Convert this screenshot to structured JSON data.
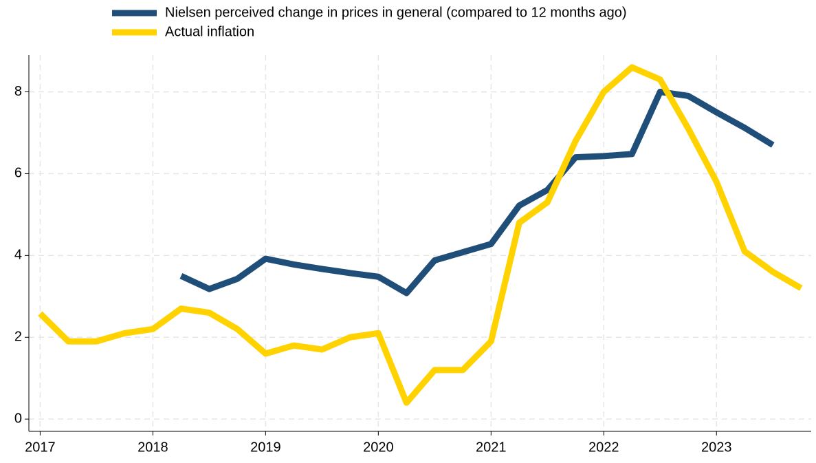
{
  "chart_data": {
    "type": "line",
    "x": [
      2017,
      2017.25,
      2017.5,
      2017.75,
      2018,
      2018.25,
      2018.5,
      2018.75,
      2019,
      2019.25,
      2019.5,
      2019.75,
      2020,
      2020.25,
      2020.5,
      2020.75,
      2021,
      2021.25,
      2021.5,
      2021.75,
      2022,
      2022.25,
      2022.5,
      2022.75,
      2023,
      2023.25,
      2023.5,
      2023.75
    ],
    "series": [
      {
        "name": "Nielsen perceived change in prices in general (compared to 12 months ago)",
        "color": "#1f4e79",
        "values": [
          null,
          null,
          null,
          null,
          null,
          3.5,
          3.18,
          3.43,
          3.92,
          3.78,
          3.67,
          3.57,
          3.48,
          3.08,
          3.88,
          4.08,
          4.28,
          5.22,
          5.6,
          6.4,
          6.43,
          6.48,
          8.0,
          7.9,
          7.5,
          7.12,
          6.7,
          null
        ]
      },
      {
        "name": "Actual inflation",
        "color": "#ffd200",
        "values": [
          2.58,
          1.9,
          1.9,
          2.1,
          2.2,
          2.7,
          2.6,
          2.2,
          1.6,
          1.8,
          1.7,
          2.0,
          2.1,
          0.4,
          1.2,
          1.2,
          1.9,
          4.8,
          5.3,
          6.8,
          8.0,
          8.6,
          8.3,
          7.1,
          5.8,
          4.1,
          3.6,
          3.2
        ]
      }
    ],
    "xlim": [
      2016.9,
      2023.84
    ],
    "xticks": [
      2017,
      2018,
      2019,
      2020,
      2021,
      2022,
      2023
    ],
    "ylim": [
      -0.3,
      8.9
    ],
    "yticks": [
      0,
      2,
      4,
      6,
      8
    ],
    "grid": true
  }
}
